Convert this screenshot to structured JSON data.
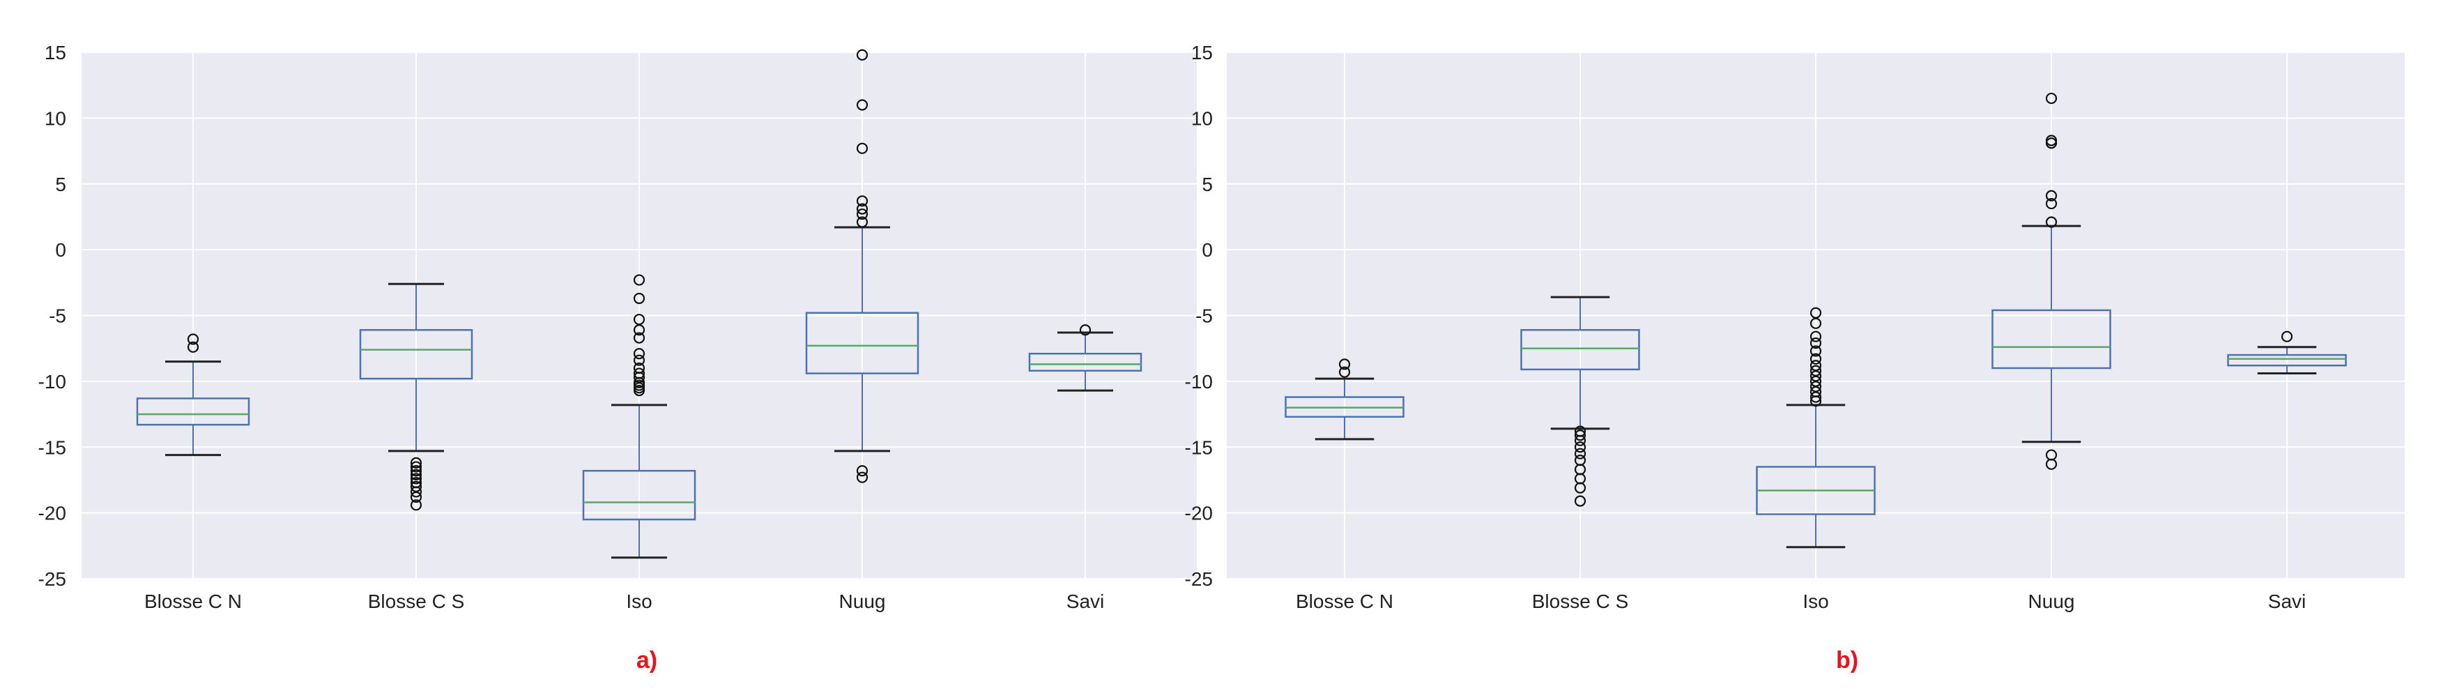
{
  "colors": {
    "plot_bg": "#eaeaf2",
    "grid": "#ffffff",
    "box": "#4c72b0",
    "median": "#55a868",
    "label_red": "#e8141c"
  },
  "chart_data": [
    {
      "type": "boxplot",
      "panel_label": "a)",
      "ylim": [
        -25,
        15
      ],
      "yticks": [
        "15",
        "10",
        "5",
        "0",
        "-5",
        "-10",
        "-15",
        "-20",
        "-25"
      ],
      "ytick_values": [
        15,
        10,
        5,
        0,
        -5,
        -10,
        -15,
        -20,
        -25
      ],
      "grid": true,
      "categories": [
        "Blosse C N",
        "Blosse C S",
        "Iso",
        "Nuug",
        "Savi"
      ],
      "boxes": [
        {
          "name": "Blosse C N",
          "whislo": -15.6,
          "q1": -13.3,
          "med": -12.5,
          "q3": -11.3,
          "whishi": -8.5,
          "fliers": [
            -6.8,
            -7.4
          ]
        },
        {
          "name": "Blosse C S",
          "whislo": -15.3,
          "q1": -9.8,
          "med": -7.6,
          "q3": -6.1,
          "whishi": -2.6,
          "fliers": [
            -16.2,
            -16.5,
            -16.8,
            -17.1,
            -17.4,
            -17.7,
            -18.0,
            -18.4,
            -18.8,
            -19.4
          ]
        },
        {
          "name": "Iso",
          "whislo": -23.4,
          "q1": -20.5,
          "med": -19.2,
          "q3": -16.8,
          "whishi": -11.8,
          "fliers": [
            -2.3,
            -3.7,
            -5.3,
            -6.1,
            -6.7,
            -7.9,
            -8.4,
            -9.0,
            -9.4,
            -9.7,
            -10.1,
            -10.3,
            -10.5,
            -10.7
          ]
        },
        {
          "name": "Nuug",
          "whislo": -15.3,
          "q1": -9.4,
          "med": -7.3,
          "q3": -4.8,
          "whishi": 1.7,
          "fliers": [
            14.8,
            11.0,
            7.7,
            3.7,
            3.1,
            2.7,
            2.1,
            -16.8,
            -17.3
          ]
        },
        {
          "name": "Savi",
          "whislo": -10.7,
          "q1": -9.2,
          "med": -8.7,
          "q3": -7.9,
          "whishi": -6.3,
          "fliers": [
            -6.1
          ]
        }
      ]
    },
    {
      "type": "boxplot",
      "panel_label": "b)",
      "ylim": [
        -25,
        15
      ],
      "yticks": [
        "15",
        "10",
        "5",
        "0",
        "-5",
        "-10",
        "-15",
        "-20",
        "-25"
      ],
      "ytick_values": [
        15,
        10,
        5,
        0,
        -5,
        -10,
        -15,
        -20,
        -25
      ],
      "grid": true,
      "categories": [
        "Blosse C N",
        "Blosse C S",
        "Iso",
        "Nuug",
        "Savi"
      ],
      "boxes": [
        {
          "name": "Blosse C N",
          "whislo": -14.4,
          "q1": -12.7,
          "med": -12.0,
          "q3": -11.2,
          "whishi": -9.8,
          "fliers": [
            -8.7,
            -9.3
          ]
        },
        {
          "name": "Blosse C S",
          "whislo": -13.6,
          "q1": -9.1,
          "med": -7.5,
          "q3": -6.1,
          "whishi": -3.6,
          "fliers": [
            -13.8,
            -14.1,
            -14.5,
            -15.0,
            -15.5,
            -16.0,
            -16.7,
            -17.4,
            -18.1,
            -19.1
          ]
        },
        {
          "name": "Iso",
          "whislo": -22.6,
          "q1": -20.1,
          "med": -18.3,
          "q3": -16.5,
          "whishi": -11.8,
          "fliers": [
            -4.8,
            -5.6,
            -6.6,
            -7.1,
            -7.7,
            -8.3,
            -8.8,
            -9.2,
            -9.6,
            -10.0,
            -10.4,
            -10.8,
            -11.2,
            -11.5
          ]
        },
        {
          "name": "Nuug",
          "whislo": -14.6,
          "q1": -9.0,
          "med": -7.4,
          "q3": -4.6,
          "whishi": 1.8,
          "fliers": [
            11.5,
            8.3,
            8.1,
            4.1,
            3.5,
            2.1,
            -15.6,
            -16.3
          ]
        },
        {
          "name": "Savi",
          "whislo": -9.4,
          "q1": -8.8,
          "med": -8.3,
          "q3": -8.0,
          "whishi": -7.4,
          "fliers": [
            -6.6
          ]
        }
      ]
    }
  ]
}
